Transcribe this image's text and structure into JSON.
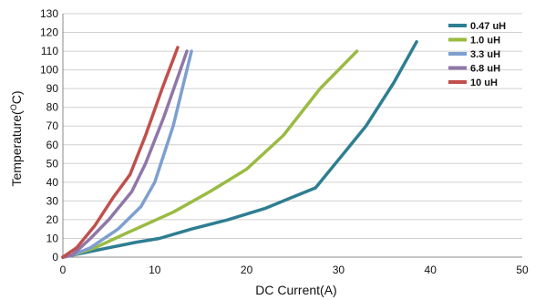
{
  "chart_data": {
    "type": "line",
    "xlabel": "DC Current(A)",
    "ylabel_main": "Temperature(",
    "ylabel_sup": "O",
    "ylabel_tail": "C)",
    "xlim": [
      0,
      50
    ],
    "ylim": [
      0,
      130
    ],
    "xticks": [
      0,
      10,
      20,
      30,
      40,
      50
    ],
    "yticks": [
      0,
      10,
      20,
      30,
      40,
      50,
      60,
      70,
      80,
      90,
      100,
      110,
      120,
      130
    ],
    "grid": "horizontal",
    "legend_position": "top-right",
    "series": [
      {
        "name": "0.47 uH",
        "color": "#2e7e91",
        "x": [
          0,
          1,
          5,
          8,
          10.5,
          14,
          18,
          22,
          24.5,
          27.5,
          30,
          33,
          36,
          38.5
        ],
        "y": [
          0,
          1,
          5,
          8,
          10,
          15,
          20,
          26,
          31,
          37,
          52,
          70,
          93,
          115
        ]
      },
      {
        "name": "1.0 uH",
        "color": "#99bb42",
        "x": [
          0,
          1,
          3.5,
          7,
          12,
          16,
          20,
          24,
          28,
          32
        ],
        "y": [
          0,
          1,
          5,
          13,
          24,
          35,
          47,
          65,
          90,
          110
        ]
      },
      {
        "name": "3.3 uH",
        "color": "#7d9fd0",
        "x": [
          0,
          1,
          3,
          6,
          8.5,
          10,
          12,
          14
        ],
        "y": [
          0,
          1,
          5,
          15,
          27,
          40,
          70,
          110
        ]
      },
      {
        "name": "6.8 uH",
        "color": "#8f77a8",
        "x": [
          0,
          1,
          3,
          5,
          7.5,
          9,
          11,
          13.5
        ],
        "y": [
          0,
          1,
          10,
          20,
          35,
          50,
          75,
          110
        ]
      },
      {
        "name": "10 uH",
        "color": "#c0504d",
        "x": [
          0,
          1.5,
          3.5,
          5.5,
          7.3,
          9,
          10.8,
          12.5
        ],
        "y": [
          0,
          5,
          17,
          32,
          44,
          65,
          90,
          112
        ]
      }
    ]
  }
}
